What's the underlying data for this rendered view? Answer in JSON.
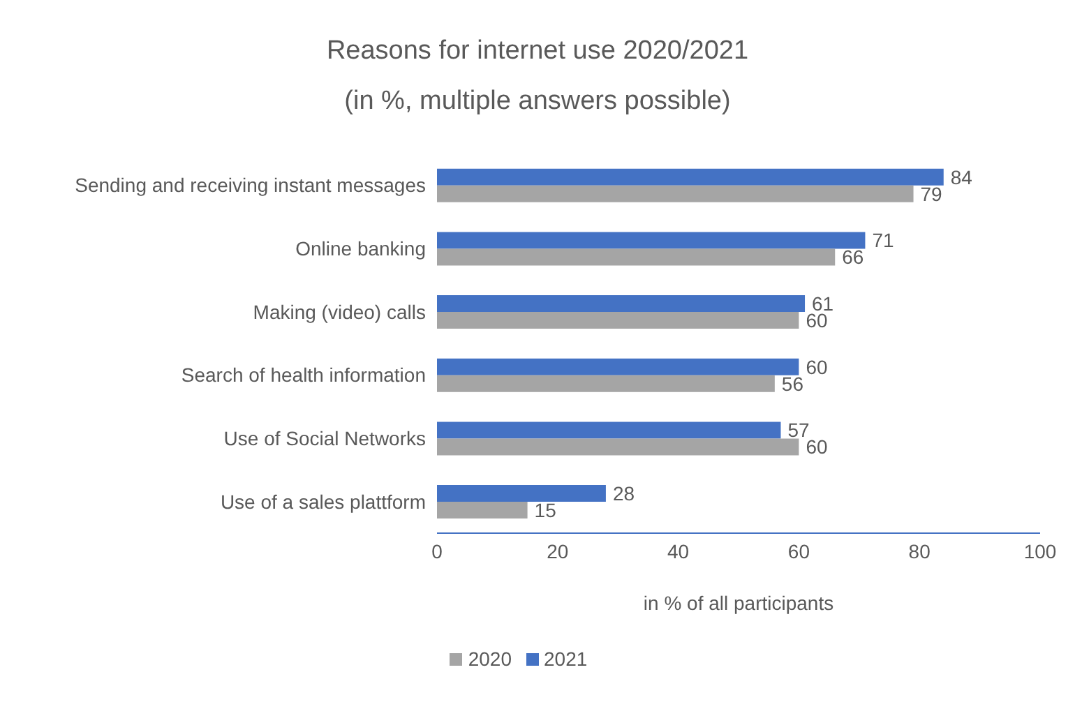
{
  "chart_data": {
    "type": "bar",
    "orientation": "horizontal",
    "title": "Reasons for internet use 2020/2021",
    "subtitle": "(in %, multiple answers possible)",
    "xlabel": "in % of all participants",
    "categories": [
      "Sending and receiving instant messages",
      "Online banking",
      "Making (video) calls",
      "Search of health information",
      "Use of Social Networks",
      "Use of a sales plattform"
    ],
    "series": [
      {
        "name": "2021",
        "color": "#4472c4",
        "values": [
          84,
          71,
          61,
          60,
          57,
          28
        ]
      },
      {
        "name": "2020",
        "color": "#a5a5a5",
        "values": [
          79,
          66,
          60,
          56,
          60,
          15
        ]
      }
    ],
    "xlim": [
      0,
      100
    ],
    "xticks": [
      0,
      20,
      40,
      60,
      80,
      100
    ],
    "data_labels": true,
    "legend": "bottom"
  }
}
